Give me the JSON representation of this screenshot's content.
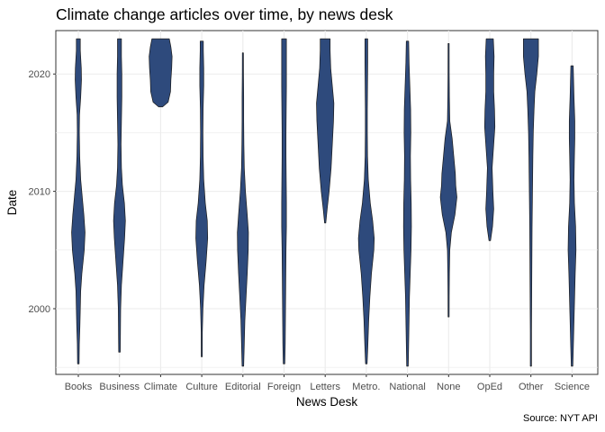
{
  "chart_data": {
    "type": "violin",
    "title": "Climate change articles over time, by news desk",
    "xlabel": "News Desk",
    "ylabel": "Date",
    "caption": "Source: NYT API",
    "ylim": [
      1994.4,
      2023.7
    ],
    "yticks": [
      2000,
      2010,
      2020
    ],
    "grid": true,
    "fill_color": "#2e4a7c",
    "outline_color": "#1a1a1a",
    "categories": [
      "Books",
      "Business",
      "Climate",
      "Culture",
      "Editorial",
      "Foreign",
      "Letters",
      "Metro.",
      "National",
      "None",
      "OpEd",
      "Other",
      "Science"
    ],
    "violins": [
      {
        "name": "Books",
        "min": 1995.3,
        "max": 2023,
        "profile": [
          [
            1995.3,
            0.04
          ],
          [
            1997,
            0.05
          ],
          [
            1998.5,
            0.08
          ],
          [
            2000,
            0.1
          ],
          [
            2001.5,
            0.12
          ],
          [
            2003,
            0.18
          ],
          [
            2005,
            0.3
          ],
          [
            2006.5,
            0.34
          ],
          [
            2008,
            0.28
          ],
          [
            2009.5,
            0.2
          ],
          [
            2011,
            0.12
          ],
          [
            2013,
            0.07
          ],
          [
            2015,
            0.05
          ],
          [
            2016.5,
            0.06
          ],
          [
            2018,
            0.12
          ],
          [
            2019.5,
            0.16
          ],
          [
            2020.5,
            0.15
          ],
          [
            2022,
            0.1
          ],
          [
            2023,
            0.1
          ]
        ]
      },
      {
        "name": "Business",
        "min": 1996.3,
        "max": 2023,
        "profile": [
          [
            1996.3,
            0.04
          ],
          [
            1998,
            0.05
          ],
          [
            2000,
            0.06
          ],
          [
            2002,
            0.1
          ],
          [
            2004,
            0.18
          ],
          [
            2006,
            0.26
          ],
          [
            2007.5,
            0.3
          ],
          [
            2009,
            0.25
          ],
          [
            2010.5,
            0.15
          ],
          [
            2012,
            0.1
          ],
          [
            2014,
            0.08
          ],
          [
            2016,
            0.1
          ],
          [
            2018,
            0.12
          ],
          [
            2020,
            0.12
          ],
          [
            2021.5,
            0.1
          ],
          [
            2023,
            0.1
          ]
        ]
      },
      {
        "name": "Climate",
        "min": 2017.2,
        "max": 2023,
        "profile": [
          [
            2017.2,
            0.1
          ],
          [
            2017.6,
            0.38
          ],
          [
            2018.5,
            0.5
          ],
          [
            2019.5,
            0.52
          ],
          [
            2020.5,
            0.56
          ],
          [
            2021.5,
            0.58
          ],
          [
            2022.3,
            0.52
          ],
          [
            2023,
            0.44
          ]
        ]
      },
      {
        "name": "Culture",
        "min": 1995.9,
        "max": 2022.8,
        "profile": [
          [
            1995.9,
            0.02
          ],
          [
            1998,
            0.03
          ],
          [
            2000,
            0.06
          ],
          [
            2002,
            0.12
          ],
          [
            2004,
            0.22
          ],
          [
            2006,
            0.3
          ],
          [
            2007.5,
            0.28
          ],
          [
            2009,
            0.18
          ],
          [
            2011,
            0.1
          ],
          [
            2013,
            0.07
          ],
          [
            2015,
            0.06
          ],
          [
            2017,
            0.07
          ],
          [
            2019,
            0.1
          ],
          [
            2020.5,
            0.1
          ],
          [
            2022,
            0.08
          ],
          [
            2022.8,
            0.08
          ]
        ]
      },
      {
        "name": "Editorial",
        "min": 1995.1,
        "max": 2021.8,
        "profile": [
          [
            1995.1,
            0.04
          ],
          [
            1997,
            0.07
          ],
          [
            1999,
            0.1
          ],
          [
            2001,
            0.16
          ],
          [
            2003,
            0.22
          ],
          [
            2005,
            0.27
          ],
          [
            2006.5,
            0.28
          ],
          [
            2008,
            0.22
          ],
          [
            2010,
            0.13
          ],
          [
            2012,
            0.07
          ],
          [
            2014,
            0.05
          ],
          [
            2016,
            0.04
          ],
          [
            2018,
            0.04
          ],
          [
            2020,
            0.03
          ],
          [
            2021.8,
            0.02
          ]
        ]
      },
      {
        "name": "Foreign",
        "min": 1995.3,
        "max": 2023,
        "profile": [
          [
            1995.3,
            0.04
          ],
          [
            1997,
            0.06
          ],
          [
            1999,
            0.07
          ],
          [
            2001,
            0.08
          ],
          [
            2003,
            0.09
          ],
          [
            2005,
            0.1
          ],
          [
            2007,
            0.12
          ],
          [
            2009,
            0.12
          ],
          [
            2011,
            0.11
          ],
          [
            2013,
            0.1
          ],
          [
            2015,
            0.1
          ],
          [
            2017,
            0.11
          ],
          [
            2019,
            0.12
          ],
          [
            2021,
            0.12
          ],
          [
            2023,
            0.12
          ]
        ]
      },
      {
        "name": "Letters",
        "min": 2007.3,
        "max": 2023,
        "profile": [
          [
            2007.3,
            0.03
          ],
          [
            2008.5,
            0.1
          ],
          [
            2010,
            0.2
          ],
          [
            2012,
            0.3
          ],
          [
            2014,
            0.36
          ],
          [
            2016,
            0.42
          ],
          [
            2017.5,
            0.44
          ],
          [
            2019,
            0.36
          ],
          [
            2020.5,
            0.28
          ],
          [
            2022,
            0.25
          ],
          [
            2023,
            0.25
          ]
        ]
      },
      {
        "name": "Metro.",
        "min": 1995.3,
        "max": 2023,
        "profile": [
          [
            1995.3,
            0.04
          ],
          [
            1997,
            0.08
          ],
          [
            1999,
            0.12
          ],
          [
            2001,
            0.18
          ],
          [
            2003,
            0.26
          ],
          [
            2005,
            0.38
          ],
          [
            2006,
            0.4
          ],
          [
            2007.5,
            0.32
          ],
          [
            2009,
            0.2
          ],
          [
            2011,
            0.1
          ],
          [
            2013,
            0.06
          ],
          [
            2015,
            0.05
          ],
          [
            2017,
            0.05
          ],
          [
            2019,
            0.06
          ],
          [
            2021,
            0.07
          ],
          [
            2023,
            0.07
          ]
        ]
      },
      {
        "name": "National",
        "min": 1995.1,
        "max": 2022.8,
        "profile": [
          [
            1995.1,
            0.04
          ],
          [
            1997,
            0.06
          ],
          [
            1999,
            0.08
          ],
          [
            2001,
            0.1
          ],
          [
            2003,
            0.14
          ],
          [
            2005,
            0.18
          ],
          [
            2007,
            0.2
          ],
          [
            2009,
            0.19
          ],
          [
            2011,
            0.16
          ],
          [
            2013,
            0.15
          ],
          [
            2015,
            0.17
          ],
          [
            2017,
            0.16
          ],
          [
            2019,
            0.12
          ],
          [
            2021,
            0.08
          ],
          [
            2022.8,
            0.06
          ]
        ]
      },
      {
        "name": "None",
        "min": 1999.3,
        "max": 2022.6,
        "profile": [
          [
            1999.3,
            0.02
          ],
          [
            2001,
            0.03
          ],
          [
            2003,
            0.04
          ],
          [
            2005,
            0.06
          ],
          [
            2006.5,
            0.14
          ],
          [
            2008,
            0.32
          ],
          [
            2009.5,
            0.42
          ],
          [
            2010.5,
            0.36
          ],
          [
            2011.5,
            0.34
          ],
          [
            2013,
            0.26
          ],
          [
            2014.5,
            0.18
          ],
          [
            2016,
            0.06
          ],
          [
            2018,
            0.04
          ],
          [
            2020,
            0.03
          ],
          [
            2022.6,
            0.02
          ]
        ]
      },
      {
        "name": "OpEd",
        "min": 2005.8,
        "max": 2023,
        "profile": [
          [
            2005.8,
            0.04
          ],
          [
            2007,
            0.14
          ],
          [
            2008.5,
            0.2
          ],
          [
            2010,
            0.16
          ],
          [
            2012,
            0.12
          ],
          [
            2014,
            0.2
          ],
          [
            2015.5,
            0.26
          ],
          [
            2017,
            0.24
          ],
          [
            2018.5,
            0.2
          ],
          [
            2020,
            0.2
          ],
          [
            2021.5,
            0.22
          ],
          [
            2023,
            0.18
          ]
        ]
      },
      {
        "name": "Other",
        "min": 1995.1,
        "max": 2023,
        "profile": [
          [
            1995.1,
            0.03
          ],
          [
            1998,
            0.03
          ],
          [
            2001,
            0.04
          ],
          [
            2004,
            0.05
          ],
          [
            2007,
            0.06
          ],
          [
            2010,
            0.08
          ],
          [
            2013,
            0.1
          ],
          [
            2015,
            0.12
          ],
          [
            2017,
            0.16
          ],
          [
            2018.5,
            0.2
          ],
          [
            2020,
            0.3
          ],
          [
            2021.5,
            0.38
          ],
          [
            2023,
            0.38
          ]
        ]
      },
      {
        "name": "Science",
        "min": 1995.1,
        "max": 2020.7,
        "profile": [
          [
            1995.1,
            0.04
          ],
          [
            1997,
            0.07
          ],
          [
            1999,
            0.1
          ],
          [
            2001,
            0.13
          ],
          [
            2003,
            0.16
          ],
          [
            2005,
            0.2
          ],
          [
            2007,
            0.18
          ],
          [
            2009,
            0.12
          ],
          [
            2011,
            0.1
          ],
          [
            2013,
            0.12
          ],
          [
            2014.5,
            0.14
          ],
          [
            2016,
            0.14
          ],
          [
            2018,
            0.1
          ],
          [
            2020,
            0.07
          ],
          [
            2020.7,
            0.06
          ]
        ]
      }
    ]
  }
}
